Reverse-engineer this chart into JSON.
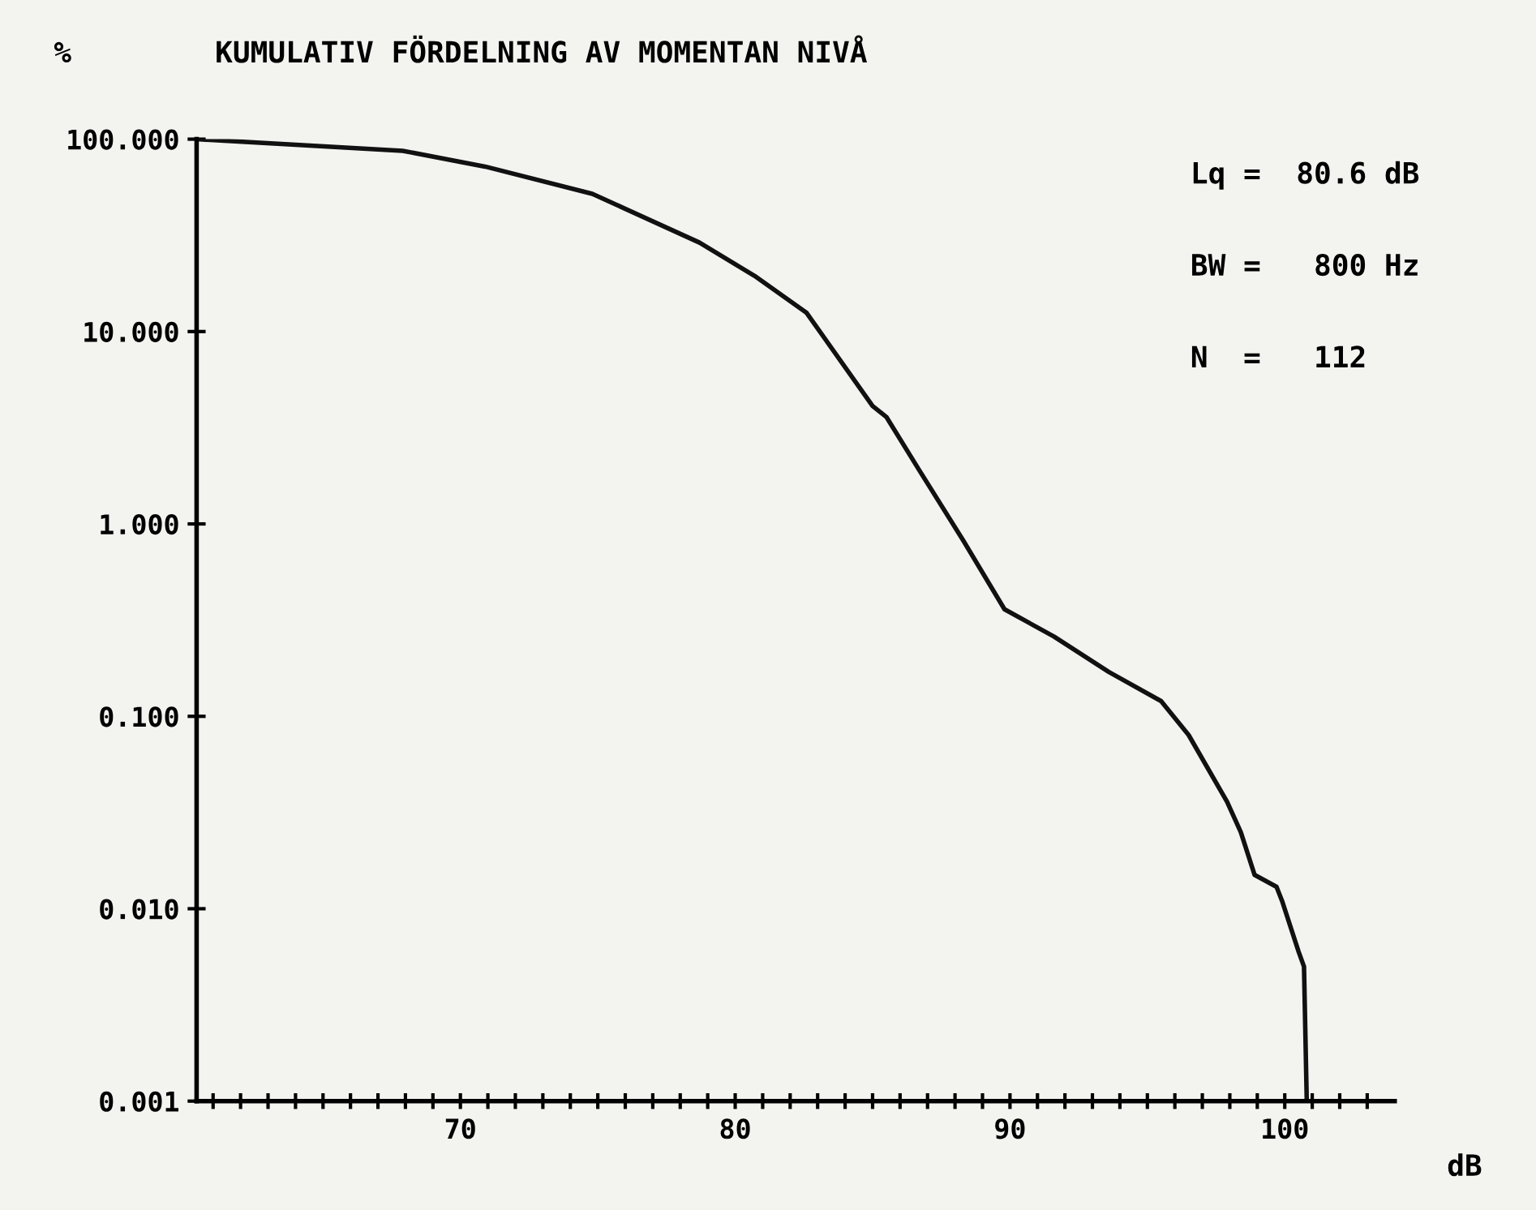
{
  "chart_data": {
    "type": "line",
    "title": "KUMULATIV FÖRDELNING AV MOMENTAN NIVÅ",
    "ylabel": "%",
    "xlabel": "dB",
    "annotations": [
      "Lq =  80.6 dB",
      "BW =   800 Hz",
      "N  =   112"
    ],
    "log": "y",
    "grid": false,
    "legend": false,
    "marker": "none",
    "line_style": "solid",
    "xlim": [
      60.4,
      104
    ],
    "ylim": [
      0.001,
      100
    ],
    "yticks": [
      {
        "value": 100,
        "label": "100.000"
      },
      {
        "value": 10,
        "label": "10.000"
      },
      {
        "value": 1,
        "label": "1.000"
      },
      {
        "value": 0.1,
        "label": "0.100"
      },
      {
        "value": 0.01,
        "label": "0.010"
      },
      {
        "value": 0.001,
        "label": "0.001"
      }
    ],
    "xticks": [
      {
        "value": 61,
        "label": null
      },
      {
        "value": 62,
        "label": null
      },
      {
        "value": 63,
        "label": null
      },
      {
        "value": 64,
        "label": null
      },
      {
        "value": 65,
        "label": null
      },
      {
        "value": 66,
        "label": null
      },
      {
        "value": 67,
        "label": null
      },
      {
        "value": 68,
        "label": null
      },
      {
        "value": 69,
        "label": null
      },
      70,
      {
        "value": 71,
        "label": null
      },
      {
        "value": 72,
        "label": null
      },
      {
        "value": 73,
        "label": null
      },
      {
        "value": 74,
        "label": null
      },
      {
        "value": 75,
        "label": null
      },
      {
        "value": 76,
        "label": null
      },
      {
        "value": 77,
        "label": null
      },
      {
        "value": 78,
        "label": null
      },
      {
        "value": 79,
        "label": null
      },
      80,
      {
        "value": 81,
        "label": null
      },
      {
        "value": 82,
        "label": null
      },
      {
        "value": 83,
        "label": null
      },
      {
        "value": 84,
        "label": null
      },
      {
        "value": 85,
        "label": null
      },
      {
        "value": 86,
        "label": null
      },
      {
        "value": 87,
        "label": null
      },
      {
        "value": 88,
        "label": null
      },
      {
        "value": 89,
        "label": null
      },
      90,
      {
        "value": 91,
        "label": null
      },
      {
        "value": 92,
        "label": null
      },
      {
        "value": 93,
        "label": null
      },
      {
        "value": 94,
        "label": null
      },
      {
        "value": 95,
        "label": null
      },
      {
        "value": 96,
        "label": null
      },
      {
        "value": 97,
        "label": null
      },
      {
        "value": 98,
        "label": null
      },
      {
        "value": 99,
        "label": null
      },
      100,
      {
        "value": 101,
        "label": null
      },
      {
        "value": 102,
        "label": null
      },
      {
        "value": 103,
        "label": null
      }
    ],
    "series": [
      {
        "color": "#111111",
        "x": [
          60.4,
          67.9,
          70.9,
          74.8,
          78.7,
          80.7,
          82.6,
          85.0,
          85.5,
          86.7,
          88.3,
          89.8,
          91.6,
          93.6,
          95.5,
          96.5,
          97.9,
          98.4,
          98.9,
          99.7,
          99.9,
          100.5,
          100.7,
          100.8
        ],
        "values": [
          100,
          87,
          72,
          52,
          29,
          19.5,
          12.5,
          4.1,
          3.6,
          1.9,
          0.82,
          0.36,
          0.26,
          0.17,
          0.12,
          0.08,
          0.036,
          0.025,
          0.015,
          0.013,
          0.011,
          0.006,
          0.005,
          0.001
        ]
      }
    ]
  }
}
